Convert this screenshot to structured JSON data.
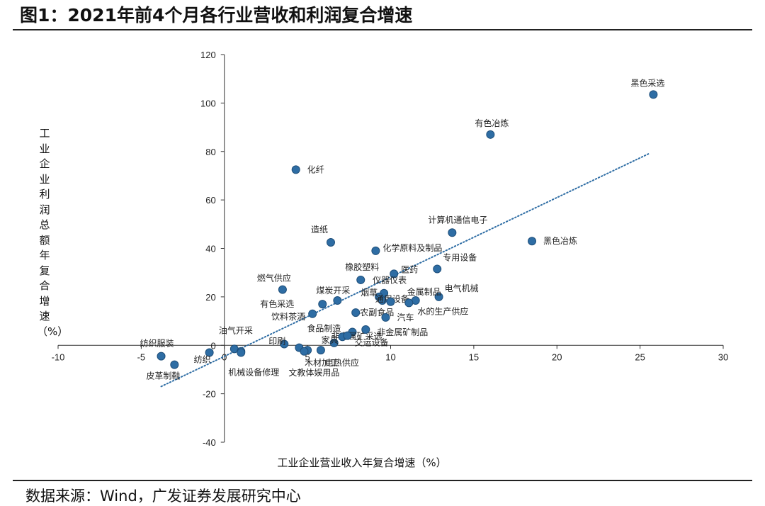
{
  "title": "图1：2021年前4个月各行业营收和利润复合增速",
  "source": "数据来源：Wind，广发证券发展研究中心",
  "colors": {
    "point": "#2E6DA4",
    "point_edge": "#1F4F7A",
    "trend": "#2E6DA4",
    "axis": "#333333"
  },
  "chart_data": {
    "type": "scatter",
    "title": "图1：2021年前4个月各行业营收和利润复合增速",
    "xlabel": "工业企业营业收入年复合增速（%）",
    "ylabel": "工业企业利润总额年复合增速（%）",
    "xlim": [
      -10,
      30
    ],
    "ylim": [
      -40,
      120
    ],
    "xticks": [
      -10,
      -5,
      0,
      5,
      10,
      15,
      20,
      25,
      30
    ],
    "yticks": [
      -40,
      -20,
      0,
      20,
      40,
      60,
      80,
      100,
      120
    ],
    "grid": false,
    "legend": "none",
    "trendline": {
      "style": "dotted",
      "from": [
        -3.8,
        -17
      ],
      "to": [
        25.5,
        79
      ]
    },
    "points": [
      {
        "label": "黑色采选",
        "x": 25.8,
        "y": 103.5
      },
      {
        "label": "有色冶炼",
        "x": 16.0,
        "y": 87.0
      },
      {
        "label": "化纤",
        "x": 4.3,
        "y": 72.5
      },
      {
        "label": "计算机通信电子",
        "x": 13.7,
        "y": 46.5
      },
      {
        "label": "黑色冶炼",
        "x": 18.5,
        "y": 43.0
      },
      {
        "label": "造纸",
        "x": 6.4,
        "y": 42.5
      },
      {
        "label": "化学原料及制品",
        "x": 9.1,
        "y": 39.0
      },
      {
        "label": "专用设备",
        "x": 12.8,
        "y": 31.5
      },
      {
        "label": "医药",
        "x": 10.2,
        "y": 29.5
      },
      {
        "label": "橡胶塑料",
        "x": 8.2,
        "y": 27.0
      },
      {
        "label": "燃气供应",
        "x": 3.5,
        "y": 23.0
      },
      {
        "label": "仪器仪表",
        "x": 9.6,
        "y": 21.5
      },
      {
        "label": "烟草",
        "x": 9.3,
        "y": 20.0
      },
      {
        "label": "电气机械",
        "x": 12.9,
        "y": 20.0
      },
      {
        "label": "金属制品",
        "x": 11.5,
        "y": 18.5
      },
      {
        "label": "煤炭开采",
        "x": 6.8,
        "y": 18.5
      },
      {
        "label": "通用设备",
        "x": 9.5,
        "y": 18.5
      },
      {
        "label": "水的生产供应",
        "x": 11.1,
        "y": 17.5
      },
      {
        "label": "",
        "x": 10.0,
        "y": 18.0
      },
      {
        "label": "有色采选",
        "x": 5.9,
        "y": 17.0
      },
      {
        "label": "农副食品",
        "x": 7.9,
        "y": 13.5
      },
      {
        "label": "饮料茶酒",
        "x": 5.3,
        "y": 13.0
      },
      {
        "label": "汽车",
        "x": 9.7,
        "y": 11.5
      },
      {
        "label": "非金属矿采选",
        "x": 7.7,
        "y": 5.5
      },
      {
        "label": "非金属矿制品",
        "x": 8.5,
        "y": 6.5
      },
      {
        "label": "食品制造",
        "x": 7.1,
        "y": 3.5
      },
      {
        "label": "油气开采",
        "x": 0.6,
        "y": -1.5
      },
      {
        "label": "家具",
        "x": 6.6,
        "y": 1.0
      },
      {
        "label": "印刷",
        "x": 3.6,
        "y": 0.5
      },
      {
        "label": "交运设备",
        "x": 7.4,
        "y": 4.0
      },
      {
        "label": "纺织服装",
        "x": -3.8,
        "y": -4.5
      },
      {
        "label": "纺织",
        "x": -0.9,
        "y": -3.0
      },
      {
        "label": "",
        "x": 1.0,
        "y": -2.5
      },
      {
        "label": "",
        "x": 4.5,
        "y": -1.0
      },
      {
        "label": "木材加工",
        "x": 5.0,
        "y": -2.0
      },
      {
        "label": "电热供应",
        "x": 5.8,
        "y": -2.0
      },
      {
        "label": "机械设备修理",
        "x": 1.0,
        "y": -3.0
      },
      {
        "label": "文教体娱用品",
        "x": 4.8,
        "y": -2.5
      },
      {
        "label": "皮革制鞋",
        "x": -3.0,
        "y": -8.0
      }
    ]
  }
}
